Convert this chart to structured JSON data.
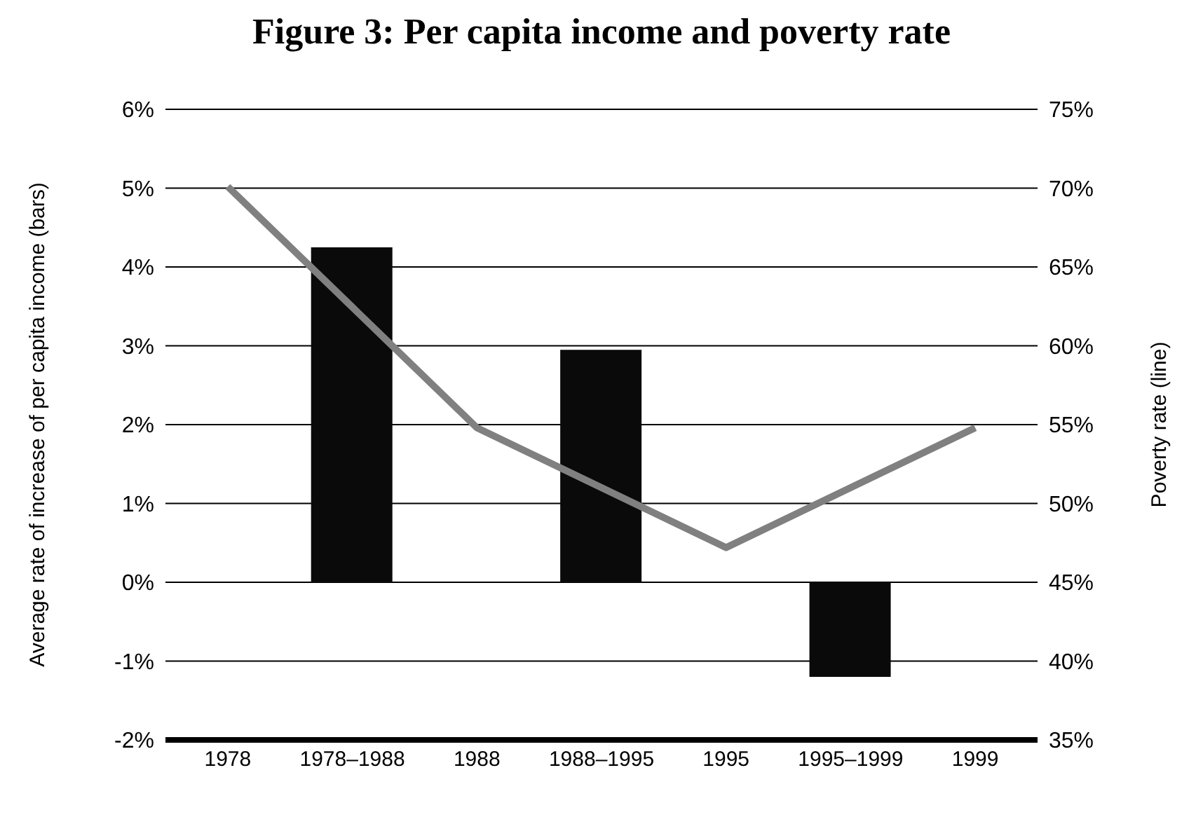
{
  "chart_data": {
    "type": "bar",
    "title": "Figure 3: Per capita income and poverty rate",
    "ylabel": "Average rate of increase of per capita income (bars)",
    "y2label": "Poverty rate (line)",
    "categories": [
      "1978",
      "1978–1988",
      "1988",
      "1988–1995",
      "1995",
      "1995–1999",
      "1999"
    ],
    "series": [
      {
        "color": "#0a0a0a",
        "values": [
          null,
          4.25,
          null,
          2.95,
          null,
          -1.2,
          null
        ]
      },
      {
        "type": "line",
        "axis": "y2",
        "color": "#808080",
        "values": [
          70.1,
          null,
          54.8,
          null,
          47.2,
          null,
          54.8
        ]
      }
    ],
    "ylim": [
      -2,
      6
    ],
    "yticks": [
      {
        "value": -2,
        "label": "-2%"
      },
      {
        "value": -1,
        "label": "-1%"
      },
      {
        "value": 0,
        "label": "0%"
      },
      {
        "value": 1,
        "label": "1%"
      },
      {
        "value": 2,
        "label": "2%"
      },
      {
        "value": 3,
        "label": "3%"
      },
      {
        "value": 4,
        "label": "4%"
      },
      {
        "value": 5,
        "label": "5%"
      },
      {
        "value": 6,
        "label": "6%"
      }
    ],
    "y2lim": [
      35,
      75
    ],
    "y2ticks": [
      {
        "value": 35,
        "label": "35%"
      },
      {
        "value": 40,
        "label": "40%"
      },
      {
        "value": 45,
        "label": "45%"
      },
      {
        "value": 50,
        "label": "50%"
      },
      {
        "value": 55,
        "label": "55%"
      },
      {
        "value": 60,
        "label": "60%"
      },
      {
        "value": 65,
        "label": "65%"
      },
      {
        "value": 70,
        "label": "70%"
      },
      {
        "value": 75,
        "label": "75%"
      }
    ],
    "grid": "y",
    "marker": "none",
    "line_style": "solid"
  }
}
